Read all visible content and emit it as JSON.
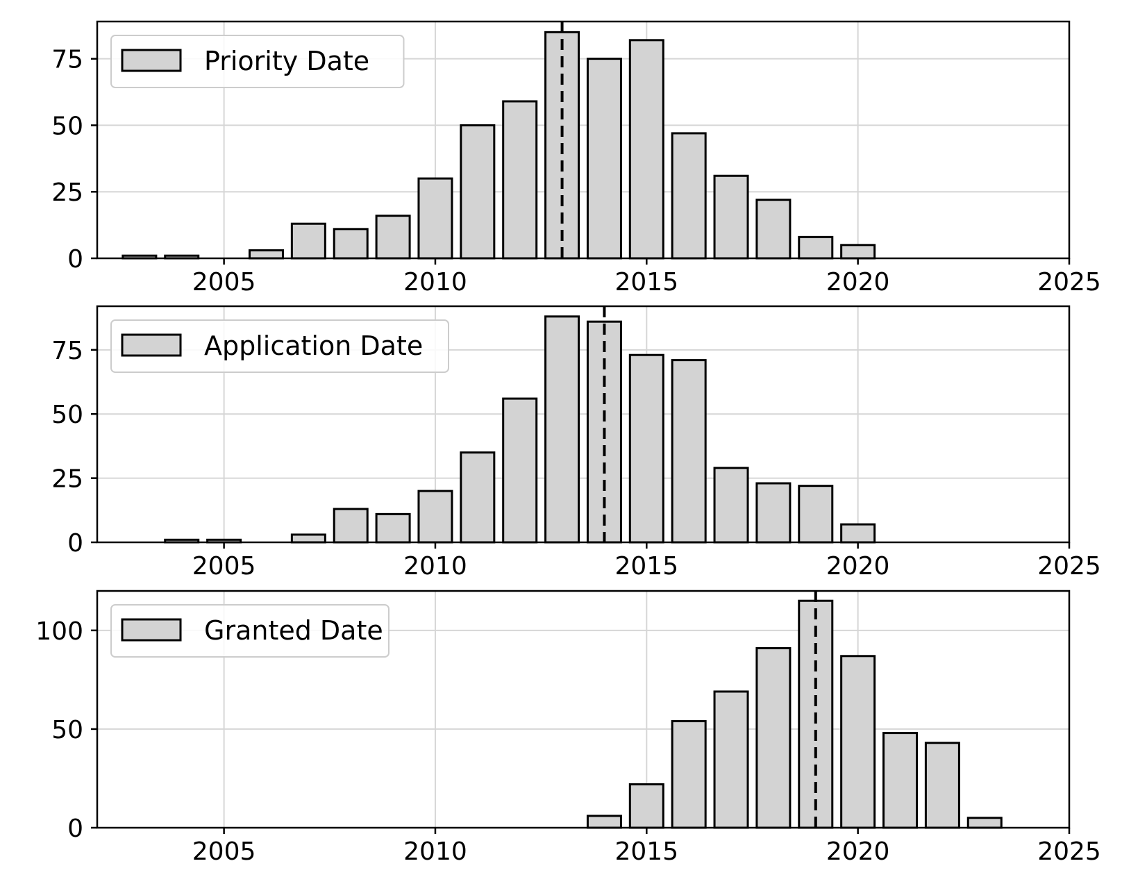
{
  "chart_data": [
    {
      "type": "bar",
      "legend": "Priority Date",
      "legend_position": "upper-left",
      "grid": true,
      "bar_color": "#d3d3d3",
      "edge_color": "#000000",
      "x": [
        2003,
        2004,
        2006,
        2007,
        2008,
        2009,
        2010,
        2011,
        2012,
        2013,
        2014,
        2015,
        2016,
        2017,
        2018,
        2019,
        2020
      ],
      "values": [
        1,
        1,
        3,
        13,
        11,
        16,
        30,
        50,
        59,
        85,
        75,
        82,
        47,
        31,
        22,
        8,
        5
      ],
      "median_line": 2013,
      "xlim": [
        2002,
        2025
      ],
      "ylim": [
        0,
        89
      ],
      "xticks": [
        "2005",
        "2010",
        "2015",
        "2020",
        "2025"
      ],
      "yticks": [
        "0",
        "25",
        "50",
        "75"
      ]
    },
    {
      "type": "bar",
      "legend": "Application Date",
      "legend_position": "upper-left",
      "grid": true,
      "bar_color": "#d3d3d3",
      "edge_color": "#000000",
      "x": [
        2004,
        2005,
        2007,
        2008,
        2009,
        2010,
        2011,
        2012,
        2013,
        2014,
        2015,
        2016,
        2017,
        2018,
        2019,
        2020
      ],
      "values": [
        1,
        1,
        3,
        13,
        11,
        20,
        35,
        56,
        88,
        86,
        73,
        71,
        29,
        23,
        22,
        7
      ],
      "median_line": 2014,
      "xlim": [
        2002,
        2025
      ],
      "ylim": [
        0,
        92
      ],
      "xticks": [
        "2005",
        "2010",
        "2015",
        "2020",
        "2025"
      ],
      "yticks": [
        "0",
        "25",
        "50",
        "75"
      ]
    },
    {
      "type": "bar",
      "legend": "Granted Date",
      "legend_position": "upper-left",
      "grid": true,
      "bar_color": "#d3d3d3",
      "edge_color": "#000000",
      "x": [
        2014,
        2015,
        2016,
        2017,
        2018,
        2019,
        2020,
        2021,
        2022,
        2023
      ],
      "values": [
        6,
        22,
        54,
        69,
        91,
        115,
        87,
        48,
        43,
        5
      ],
      "median_line": 2019,
      "xlim": [
        2002,
        2025
      ],
      "ylim": [
        0,
        120
      ],
      "xticks": [
        "2005",
        "2010",
        "2015",
        "2020",
        "2025"
      ],
      "yticks": [
        "0",
        "50",
        "100"
      ]
    }
  ]
}
